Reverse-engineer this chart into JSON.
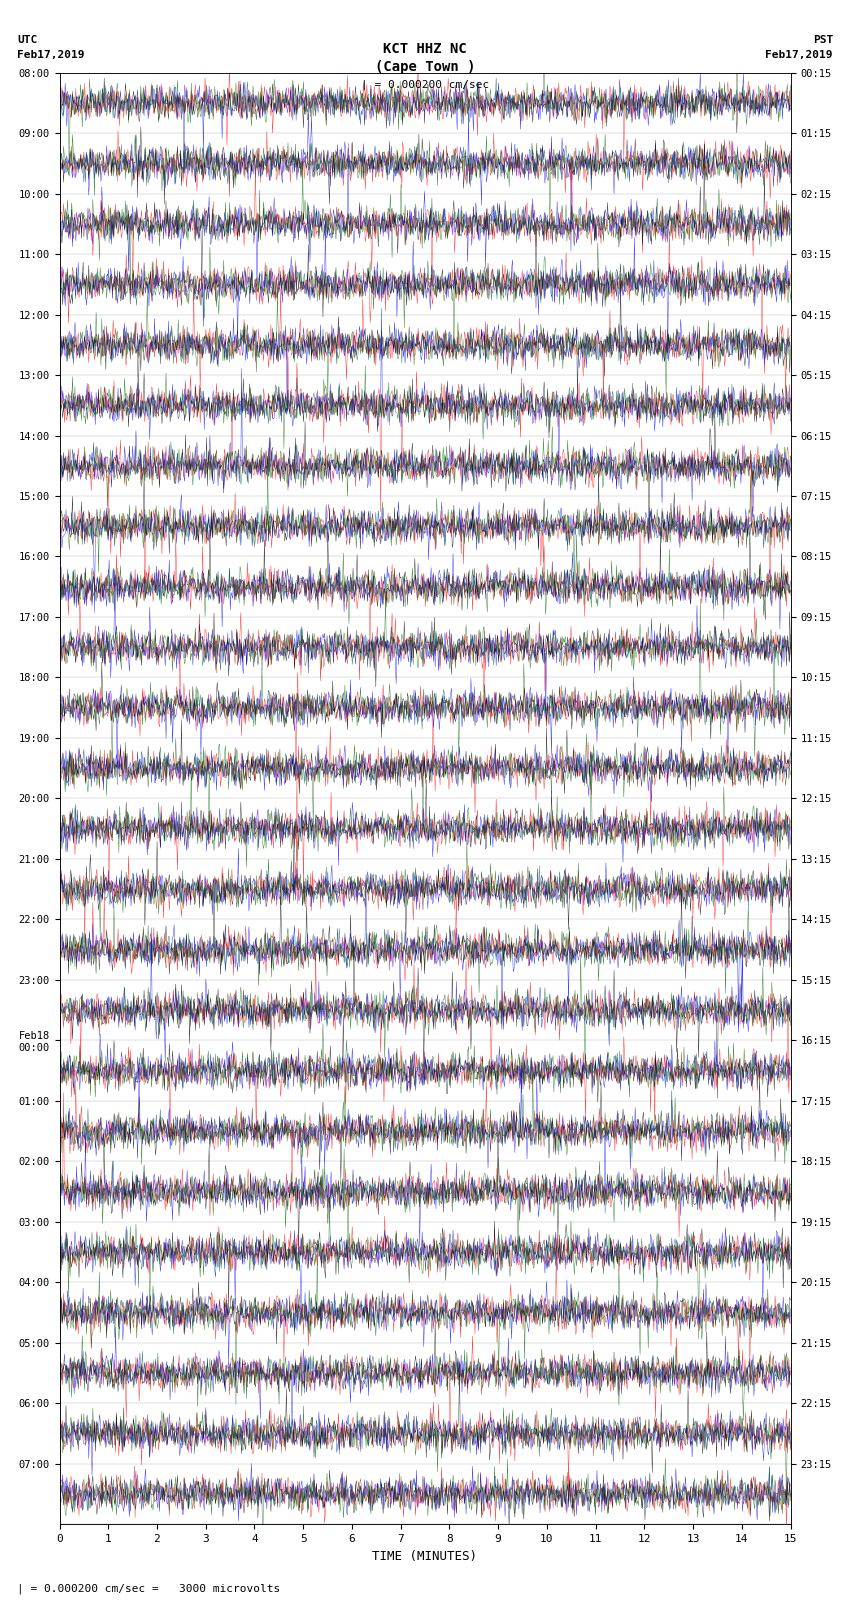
{
  "title_line1": "KCT HHZ NC",
  "title_line2": "(Cape Town )",
  "title_scale": "| = 0.000200 cm/sec",
  "utc_label": "UTC",
  "utc_date": "Feb17,2019",
  "pst_label": "PST",
  "pst_date": "Feb17,2019",
  "bottom_label": "| = 0.000200 cm/sec =   3000 microvolts",
  "xlabel": "TIME (MINUTES)",
  "left_times": [
    "08:00",
    "09:00",
    "10:00",
    "11:00",
    "12:00",
    "13:00",
    "14:00",
    "15:00",
    "16:00",
    "17:00",
    "18:00",
    "19:00",
    "20:00",
    "21:00",
    "22:00",
    "23:00",
    "Feb18\n00:00",
    "01:00",
    "02:00",
    "03:00",
    "04:00",
    "05:00",
    "06:00",
    "07:00"
  ],
  "right_times": [
    "00:15",
    "01:15",
    "02:15",
    "03:15",
    "04:15",
    "05:15",
    "06:15",
    "07:15",
    "08:15",
    "09:15",
    "10:15",
    "11:15",
    "12:15",
    "13:15",
    "14:15",
    "15:15",
    "16:15",
    "17:15",
    "18:15",
    "19:15",
    "20:15",
    "21:15",
    "22:15",
    "23:15"
  ],
  "num_rows": 24,
  "minutes_per_row": 60,
  "colors": [
    "#ff0000",
    "#0000ff",
    "#006400",
    "#000000"
  ],
  "bg_color": "#ffffff",
  "noise_amplitude": 0.35,
  "seed": 42
}
